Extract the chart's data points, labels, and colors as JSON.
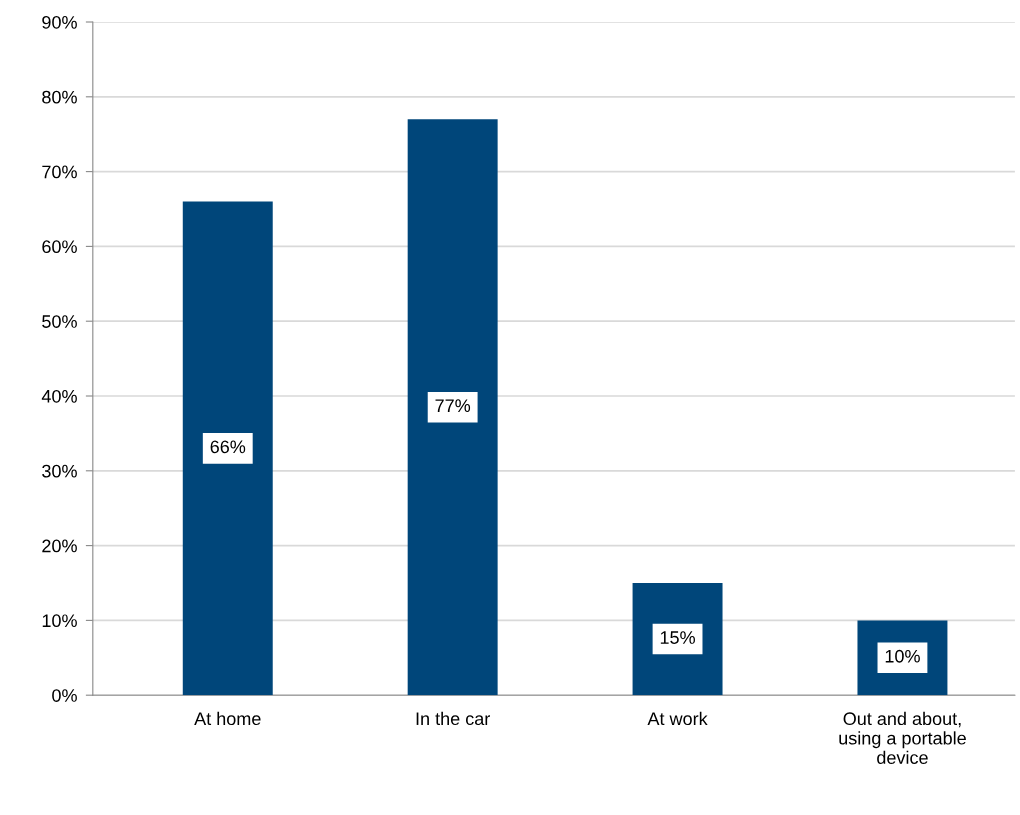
{
  "chart_data": {
    "type": "bar",
    "categories": [
      "At home",
      "In the car",
      "At work",
      "Out and about,\nusing a portable\ndevice"
    ],
    "values": [
      66,
      77,
      15,
      10
    ],
    "value_labels": [
      "66%",
      "77%",
      "15%",
      "10%"
    ],
    "color": "#00467a",
    "ylim": [
      0,
      90
    ],
    "yticks": [
      {
        "value": 0,
        "label": "0%"
      },
      {
        "value": 10,
        "label": "10%"
      },
      {
        "value": 20,
        "label": "20%"
      },
      {
        "value": 30,
        "label": "30%"
      },
      {
        "value": 40,
        "label": "40%"
      },
      {
        "value": 50,
        "label": "50%"
      },
      {
        "value": 60,
        "label": "60%"
      },
      {
        "value": 70,
        "label": "70%"
      },
      {
        "value": 80,
        "label": "80%"
      },
      {
        "value": 90,
        "label": "90%"
      }
    ],
    "grid": "y"
  }
}
